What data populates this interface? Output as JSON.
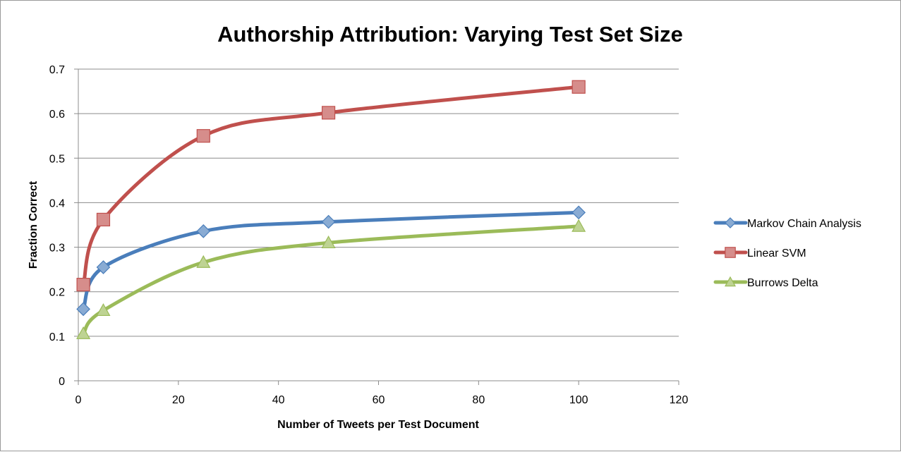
{
  "chart_data": {
    "type": "scatter",
    "title": "Authorship Attribution: Varying Test Set Size",
    "xlabel": "Number of Tweets per Test Document",
    "ylabel": "Fraction Correct",
    "xlim": [
      0,
      120
    ],
    "ylim": [
      0,
      0.7
    ],
    "xticks": [
      0,
      20,
      40,
      60,
      80,
      100,
      120
    ],
    "yticks": [
      0,
      0.1,
      0.2,
      0.3,
      0.4,
      0.5,
      0.6,
      0.7
    ],
    "grid": "horizontal",
    "legend_position": "right",
    "smoothed_lines": true,
    "series": [
      {
        "name": "Markov Chain Analysis",
        "color": "#4a7ebb",
        "marker": "diamond",
        "x": [
          1,
          5,
          25,
          50,
          100
        ],
        "y": [
          0.161,
          0.255,
          0.336,
          0.357,
          0.378
        ]
      },
      {
        "name": "Linear SVM",
        "color": "#c0504d",
        "marker": "square",
        "x": [
          1,
          5,
          25,
          50,
          100
        ],
        "y": [
          0.216,
          0.362,
          0.55,
          0.602,
          0.66
        ]
      },
      {
        "name": "Burrows Delta",
        "color": "#9bbb59",
        "marker": "triangle",
        "x": [
          1,
          5,
          25,
          50,
          100
        ],
        "y": [
          0.106,
          0.158,
          0.266,
          0.31,
          0.347
        ]
      }
    ]
  }
}
